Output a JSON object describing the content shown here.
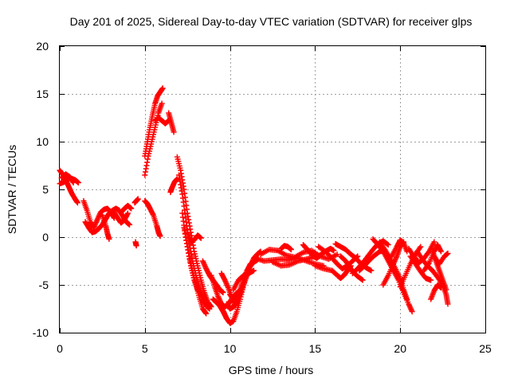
{
  "chart_data": {
    "type": "scatter",
    "title": "Day 201 of 2025, Sidereal Day-to-day VTEC variation (SDTVAR) for receiver glps",
    "xlabel": "GPS time / hours",
    "ylabel": "SDTVAR / TECUs",
    "xlim": [
      0,
      25
    ],
    "ylim": [
      -10,
      20
    ],
    "x_ticks": [
      0,
      5,
      10,
      15,
      20,
      25
    ],
    "x_tick_labels": [
      "0",
      "5",
      "10",
      "15",
      "20",
      "25"
    ],
    "y_ticks": [
      -10,
      -5,
      0,
      5,
      10,
      15,
      20
    ],
    "y_tick_labels": [
      "-10",
      "-5",
      "0",
      "5",
      "10",
      "15",
      "20"
    ],
    "grid": true,
    "marker": "plus",
    "color": "#ff0000",
    "series_description": "Multiple satellite arcs of SDTVAR vs time (hours); red '+' markers",
    "tracks": [
      [
        [
          0.0,
          7.0
        ],
        [
          0.2,
          6.5
        ],
        [
          0.4,
          5.8
        ],
        [
          0.55,
          5.2
        ],
        [
          0.7,
          4.6
        ],
        [
          0.9,
          4.0
        ],
        [
          1.05,
          3.6
        ]
      ],
      [
        [
          0.0,
          5.6
        ],
        [
          0.3,
          5.8
        ],
        [
          0.6,
          6.2
        ],
        [
          0.9,
          6.0
        ],
        [
          1.1,
          5.7
        ]
      ],
      [
        [
          0.1,
          6.2
        ],
        [
          0.35,
          6.6
        ],
        [
          0.6,
          6.3
        ],
        [
          0.8,
          5.7
        ]
      ],
      [
        [
          1.4,
          3.8
        ],
        [
          1.6,
          2.8
        ],
        [
          1.8,
          1.6
        ],
        [
          2.0,
          1.0
        ],
        [
          2.2,
          1.8
        ],
        [
          2.4,
          2.6
        ],
        [
          2.6,
          2.9
        ],
        [
          2.8,
          3.0
        ],
        [
          3.0,
          2.6
        ],
        [
          3.2,
          2.0
        ]
      ],
      [
        [
          1.5,
          1.6
        ],
        [
          1.7,
          1.0
        ],
        [
          1.9,
          0.5
        ],
        [
          2.1,
          0.6
        ],
        [
          2.3,
          0.9
        ],
        [
          2.5,
          1.3
        ],
        [
          2.7,
          1.9
        ],
        [
          2.9,
          2.5
        ],
        [
          3.1,
          2.8
        ],
        [
          3.3,
          3.0
        ],
        [
          3.5,
          2.8
        ],
        [
          3.7,
          2.2
        ],
        [
          3.9,
          1.6
        ],
        [
          4.1,
          1.3
        ]
      ],
      [
        [
          2.5,
          2.3
        ],
        [
          2.7,
          1.2
        ],
        [
          2.8,
          0.4
        ],
        [
          2.9,
          -0.2
        ]
      ],
      [
        [
          3.2,
          2.6
        ],
        [
          3.4,
          2.0
        ],
        [
          3.6,
          1.5
        ],
        [
          3.8,
          1.8
        ],
        [
          4.0,
          2.5
        ]
      ],
      [
        [
          3.6,
          2.6
        ],
        [
          3.8,
          3.0
        ],
        [
          4.0,
          3.3
        ],
        [
          4.2,
          3.0
        ]
      ],
      [
        [
          4.4,
          3.6
        ],
        [
          4.5,
          3.8
        ],
        [
          4.6,
          4.0
        ]
      ],
      [
        [
          4.45,
          -0.5
        ],
        [
          4.5,
          -0.9
        ]
      ],
      [
        [
          5.0,
          8.5
        ],
        [
          5.15,
          10.0
        ],
        [
          5.3,
          11.5
        ],
        [
          5.45,
          12.8
        ],
        [
          5.6,
          14.0
        ],
        [
          5.75,
          14.8
        ],
        [
          5.9,
          15.2
        ],
        [
          6.05,
          15.6
        ]
      ],
      [
        [
          5.0,
          6.5
        ],
        [
          5.2,
          8.5
        ],
        [
          5.4,
          10.0
        ],
        [
          5.6,
          11.5
        ],
        [
          5.8,
          13.0
        ],
        [
          6.0,
          14.0
        ]
      ],
      [
        [
          5.0,
          3.8
        ],
        [
          5.15,
          3.5
        ],
        [
          5.3,
          3.0
        ],
        [
          5.5,
          2.3
        ],
        [
          5.7,
          1.2
        ],
        [
          5.8,
          0.5
        ],
        [
          5.9,
          0.1
        ]
      ],
      [
        [
          5.6,
          12.2
        ],
        [
          5.8,
          12.5
        ],
        [
          6.0,
          12.2
        ],
        [
          6.2,
          11.9
        ],
        [
          6.4,
          12.2
        ]
      ],
      [
        [
          6.4,
          13.0
        ],
        [
          6.55,
          12.0
        ],
        [
          6.7,
          11.0
        ]
      ],
      [
        [
          6.5,
          4.7
        ],
        [
          6.6,
          5.2
        ],
        [
          6.75,
          5.8
        ],
        [
          6.9,
          6.1
        ]
      ],
      [
        [
          6.9,
          8.4
        ],
        [
          7.1,
          7.0
        ],
        [
          7.3,
          5.0
        ],
        [
          7.5,
          2.5
        ],
        [
          7.7,
          0.5
        ],
        [
          7.9,
          -1.5
        ],
        [
          8.1,
          -3.0
        ],
        [
          8.3,
          -4.5
        ],
        [
          8.5,
          -5.8
        ],
        [
          8.7,
          -6.8
        ],
        [
          8.9,
          -7.3
        ]
      ],
      [
        [
          7.0,
          6.5
        ],
        [
          7.2,
          4.5
        ],
        [
          7.4,
          2.0
        ],
        [
          7.6,
          -0.5
        ],
        [
          7.8,
          -2.5
        ],
        [
          8.0,
          -4.0
        ],
        [
          8.2,
          -5.3
        ],
        [
          8.4,
          -6.5
        ],
        [
          8.6,
          -7.2
        ],
        [
          8.8,
          -7.5
        ]
      ],
      [
        [
          7.2,
          2.5
        ],
        [
          7.4,
          0.0
        ],
        [
          7.6,
          -2.0
        ],
        [
          7.8,
          -3.5
        ],
        [
          8.0,
          -5.0
        ],
        [
          8.2,
          -6.3
        ],
        [
          8.4,
          -7.5
        ],
        [
          8.6,
          -8.0
        ]
      ],
      [
        [
          7.3,
          1.0
        ],
        [
          7.5,
          -1.0
        ],
        [
          7.7,
          -3.0
        ],
        [
          7.9,
          -4.5
        ],
        [
          8.1,
          -5.5
        ],
        [
          8.3,
          -6.0
        ],
        [
          8.5,
          -6.5
        ]
      ],
      [
        [
          7.5,
          0.5
        ],
        [
          7.7,
          -0.5
        ],
        [
          7.9,
          -0.3
        ],
        [
          8.1,
          0.2
        ],
        [
          8.3,
          -0.1
        ]
      ],
      [
        [
          8.4,
          -2.5
        ],
        [
          8.6,
          -3.3
        ],
        [
          8.8,
          -4.0
        ],
        [
          9.0,
          -4.5
        ],
        [
          9.2,
          -5.0
        ],
        [
          9.4,
          -5.5
        ],
        [
          9.6,
          -5.8
        ]
      ],
      [
        [
          8.9,
          -4.0
        ],
        [
          9.1,
          -5.2
        ],
        [
          9.3,
          -6.2
        ],
        [
          9.5,
          -7.0
        ],
        [
          9.7,
          -7.3
        ],
        [
          9.9,
          -7.0
        ],
        [
          10.1,
          -6.5
        ],
        [
          10.3,
          -6.0
        ],
        [
          10.5,
          -5.7
        ]
      ],
      [
        [
          9.0,
          -6.5
        ],
        [
          9.2,
          -6.8
        ],
        [
          9.4,
          -7.2
        ],
        [
          9.6,
          -7.8
        ],
        [
          9.8,
          -8.5
        ]
      ],
      [
        [
          9.5,
          -3.8
        ],
        [
          9.7,
          -4.5
        ],
        [
          9.9,
          -5.3
        ],
        [
          10.1,
          -6.3
        ],
        [
          10.3,
          -7.2
        ]
      ],
      [
        [
          9.6,
          -7.7
        ],
        [
          9.8,
          -8.5
        ],
        [
          10.0,
          -9.0
        ],
        [
          10.2,
          -8.8
        ],
        [
          10.4,
          -7.8
        ],
        [
          10.6,
          -6.5
        ],
        [
          10.8,
          -5.0
        ],
        [
          11.0,
          -3.5
        ],
        [
          11.2,
          -2.8
        ],
        [
          11.4,
          -2.6
        ],
        [
          11.6,
          -2.4
        ]
      ],
      [
        [
          9.8,
          -7.0
        ],
        [
          10.0,
          -7.5
        ],
        [
          10.2,
          -7.3
        ],
        [
          10.4,
          -6.8
        ],
        [
          10.6,
          -6.0
        ],
        [
          10.8,
          -5.0
        ],
        [
          11.0,
          -4.0
        ],
        [
          11.2,
          -3.0
        ],
        [
          11.4,
          -2.2
        ],
        [
          11.6,
          -1.8
        ],
        [
          11.8,
          -1.5
        ]
      ],
      [
        [
          10.0,
          -6.0
        ],
        [
          10.2,
          -6.5
        ],
        [
          10.4,
          -6.2
        ],
        [
          10.6,
          -5.5
        ],
        [
          10.8,
          -4.5
        ],
        [
          11.0,
          -3.5
        ],
        [
          11.3,
          -2.8
        ],
        [
          11.6,
          -2.3
        ]
      ],
      [
        [
          10.2,
          -5.5
        ],
        [
          10.5,
          -4.5
        ],
        [
          10.8,
          -4.0
        ],
        [
          11.1,
          -3.8
        ],
        [
          11.4,
          -3.5
        ]
      ],
      [
        [
          11.5,
          -2.2
        ],
        [
          12.0,
          -2.5
        ],
        [
          12.5,
          -2.4
        ],
        [
          13.0,
          -2.3
        ],
        [
          13.5,
          -2.4
        ],
        [
          14.0,
          -2.2
        ],
        [
          14.5,
          -2.5
        ],
        [
          15.0,
          -2.8
        ],
        [
          15.5,
          -3.0
        ]
      ],
      [
        [
          11.8,
          -1.8
        ],
        [
          12.3,
          -1.3
        ],
        [
          12.8,
          -1.4
        ],
        [
          13.3,
          -1.9
        ],
        [
          13.8,
          -2.1
        ],
        [
          14.3,
          -1.6
        ],
        [
          14.8,
          -1.4
        ],
        [
          15.3,
          -2.0
        ],
        [
          15.8,
          -2.3
        ],
        [
          16.3,
          -1.8
        ]
      ],
      [
        [
          12.5,
          -2.6
        ],
        [
          13.0,
          -3.0
        ],
        [
          13.5,
          -2.9
        ],
        [
          14.0,
          -2.5
        ],
        [
          14.5,
          -2.3
        ],
        [
          15.0,
          -2.0
        ]
      ],
      [
        [
          13.0,
          -1.2
        ],
        [
          13.2,
          -0.9
        ],
        [
          13.4,
          -1.0
        ],
        [
          13.6,
          -1.3
        ]
      ],
      [
        [
          14.3,
          -0.8
        ],
        [
          14.5,
          -1.2
        ],
        [
          14.7,
          -1.6
        ],
        [
          14.9,
          -2.0
        ],
        [
          15.1,
          -2.2
        ],
        [
          15.3,
          -1.9
        ],
        [
          15.5,
          -1.6
        ],
        [
          15.7,
          -1.4
        ],
        [
          15.9,
          -1.2
        ],
        [
          16.1,
          -1.4
        ]
      ],
      [
        [
          15.0,
          -3.0
        ],
        [
          15.5,
          -3.3
        ],
        [
          16.0,
          -3.5
        ],
        [
          16.3,
          -4.0
        ],
        [
          16.5,
          -4.3
        ],
        [
          16.7,
          -4.0
        ],
        [
          16.9,
          -3.5
        ],
        [
          17.1,
          -3.0
        ]
      ],
      [
        [
          15.2,
          -1.0
        ],
        [
          15.6,
          -1.5
        ],
        [
          16.0,
          -2.2
        ],
        [
          16.3,
          -2.8
        ],
        [
          16.6,
          -3.3
        ],
        [
          16.9,
          -3.0
        ],
        [
          17.2,
          -2.5
        ],
        [
          17.5,
          -2.0
        ]
      ],
      [
        [
          16.2,
          -0.7
        ],
        [
          16.5,
          -1.0
        ],
        [
          16.8,
          -1.3
        ],
        [
          17.1,
          -1.8
        ],
        [
          17.4,
          -2.2
        ],
        [
          17.7,
          -2.8
        ],
        [
          18.0,
          -3.2
        ],
        [
          18.3,
          -3.5
        ]
      ],
      [
        [
          16.5,
          -2.0
        ],
        [
          16.8,
          -2.5
        ],
        [
          17.0,
          -3.0
        ],
        [
          17.2,
          -3.6
        ],
        [
          17.5,
          -4.1
        ],
        [
          17.8,
          -4.5
        ]
      ],
      [
        [
          17.2,
          -3.8
        ],
        [
          17.5,
          -3.3
        ],
        [
          17.8,
          -2.7
        ],
        [
          18.1,
          -2.0
        ],
        [
          18.4,
          -1.3
        ],
        [
          18.7,
          -0.7
        ],
        [
          19.0,
          -0.4
        ],
        [
          19.3,
          -0.8
        ]
      ],
      [
        [
          17.6,
          -3.5
        ],
        [
          17.9,
          -3.0
        ],
        [
          18.2,
          -2.4
        ],
        [
          18.5,
          -1.9
        ],
        [
          18.8,
          -1.5
        ],
        [
          19.1,
          -1.4
        ]
      ],
      [
        [
          18.4,
          -0.2
        ],
        [
          18.7,
          -0.8
        ],
        [
          19.0,
          -1.5
        ],
        [
          19.3,
          -2.5
        ],
        [
          19.6,
          -3.5
        ],
        [
          19.9,
          -4.5
        ],
        [
          20.2,
          -5.8
        ],
        [
          20.5,
          -7.0
        ],
        [
          20.7,
          -7.8
        ]
      ],
      [
        [
          18.8,
          -0.5
        ],
        [
          19.1,
          -1.3
        ],
        [
          19.4,
          -2.2
        ],
        [
          19.7,
          -3.2
        ],
        [
          20.0,
          -4.3
        ],
        [
          20.2,
          -5.5
        ],
        [
          20.4,
          -6.5
        ]
      ],
      [
        [
          19.0,
          -5.0
        ],
        [
          19.3,
          -4.0
        ],
        [
          19.6,
          -2.8
        ],
        [
          19.8,
          -2.0
        ],
        [
          20.0,
          -1.0
        ],
        [
          20.2,
          -0.5
        ]
      ],
      [
        [
          19.5,
          -2.0
        ],
        [
          19.8,
          -1.0
        ],
        [
          20.0,
          -0.3
        ],
        [
          20.2,
          -0.6
        ],
        [
          20.4,
          -1.5
        ]
      ],
      [
        [
          20.0,
          -5.2
        ],
        [
          20.3,
          -4.0
        ],
        [
          20.6,
          -2.8
        ],
        [
          20.9,
          -1.8
        ],
        [
          21.2,
          -1.0
        ]
      ],
      [
        [
          20.5,
          -1.2
        ],
        [
          20.8,
          -2.0
        ],
        [
          21.1,
          -2.7
        ],
        [
          21.4,
          -2.2
        ],
        [
          21.7,
          -1.5
        ],
        [
          22.0,
          -0.5
        ]
      ],
      [
        [
          20.6,
          -2.0
        ],
        [
          20.9,
          -2.8
        ],
        [
          21.2,
          -3.6
        ],
        [
          21.5,
          -4.3
        ],
        [
          21.8,
          -4.5
        ]
      ],
      [
        [
          21.0,
          -1.5
        ],
        [
          21.3,
          -2.3
        ],
        [
          21.6,
          -3.0
        ],
        [
          21.9,
          -3.5
        ],
        [
          22.2,
          -4.2
        ],
        [
          22.5,
          -5.0
        ],
        [
          22.7,
          -6.0
        ],
        [
          22.8,
          -7.0
        ]
      ],
      [
        [
          21.4,
          -3.5
        ],
        [
          21.7,
          -2.7
        ],
        [
          22.0,
          -1.5
        ],
        [
          22.2,
          -0.8
        ],
        [
          22.4,
          -1.5
        ]
      ],
      [
        [
          21.9,
          -1.5
        ],
        [
          22.1,
          -2.5
        ],
        [
          22.3,
          -3.5
        ],
        [
          22.5,
          -4.5
        ],
        [
          22.7,
          -5.5
        ]
      ],
      [
        [
          21.8,
          -6.5
        ],
        [
          22.0,
          -5.6
        ],
        [
          22.2,
          -5.0
        ],
        [
          22.4,
          -5.3
        ]
      ],
      [
        [
          22.0,
          -2.0
        ],
        [
          22.3,
          -2.8
        ],
        [
          22.6,
          -2.0
        ],
        [
          22.8,
          -1.7
        ]
      ]
    ]
  }
}
